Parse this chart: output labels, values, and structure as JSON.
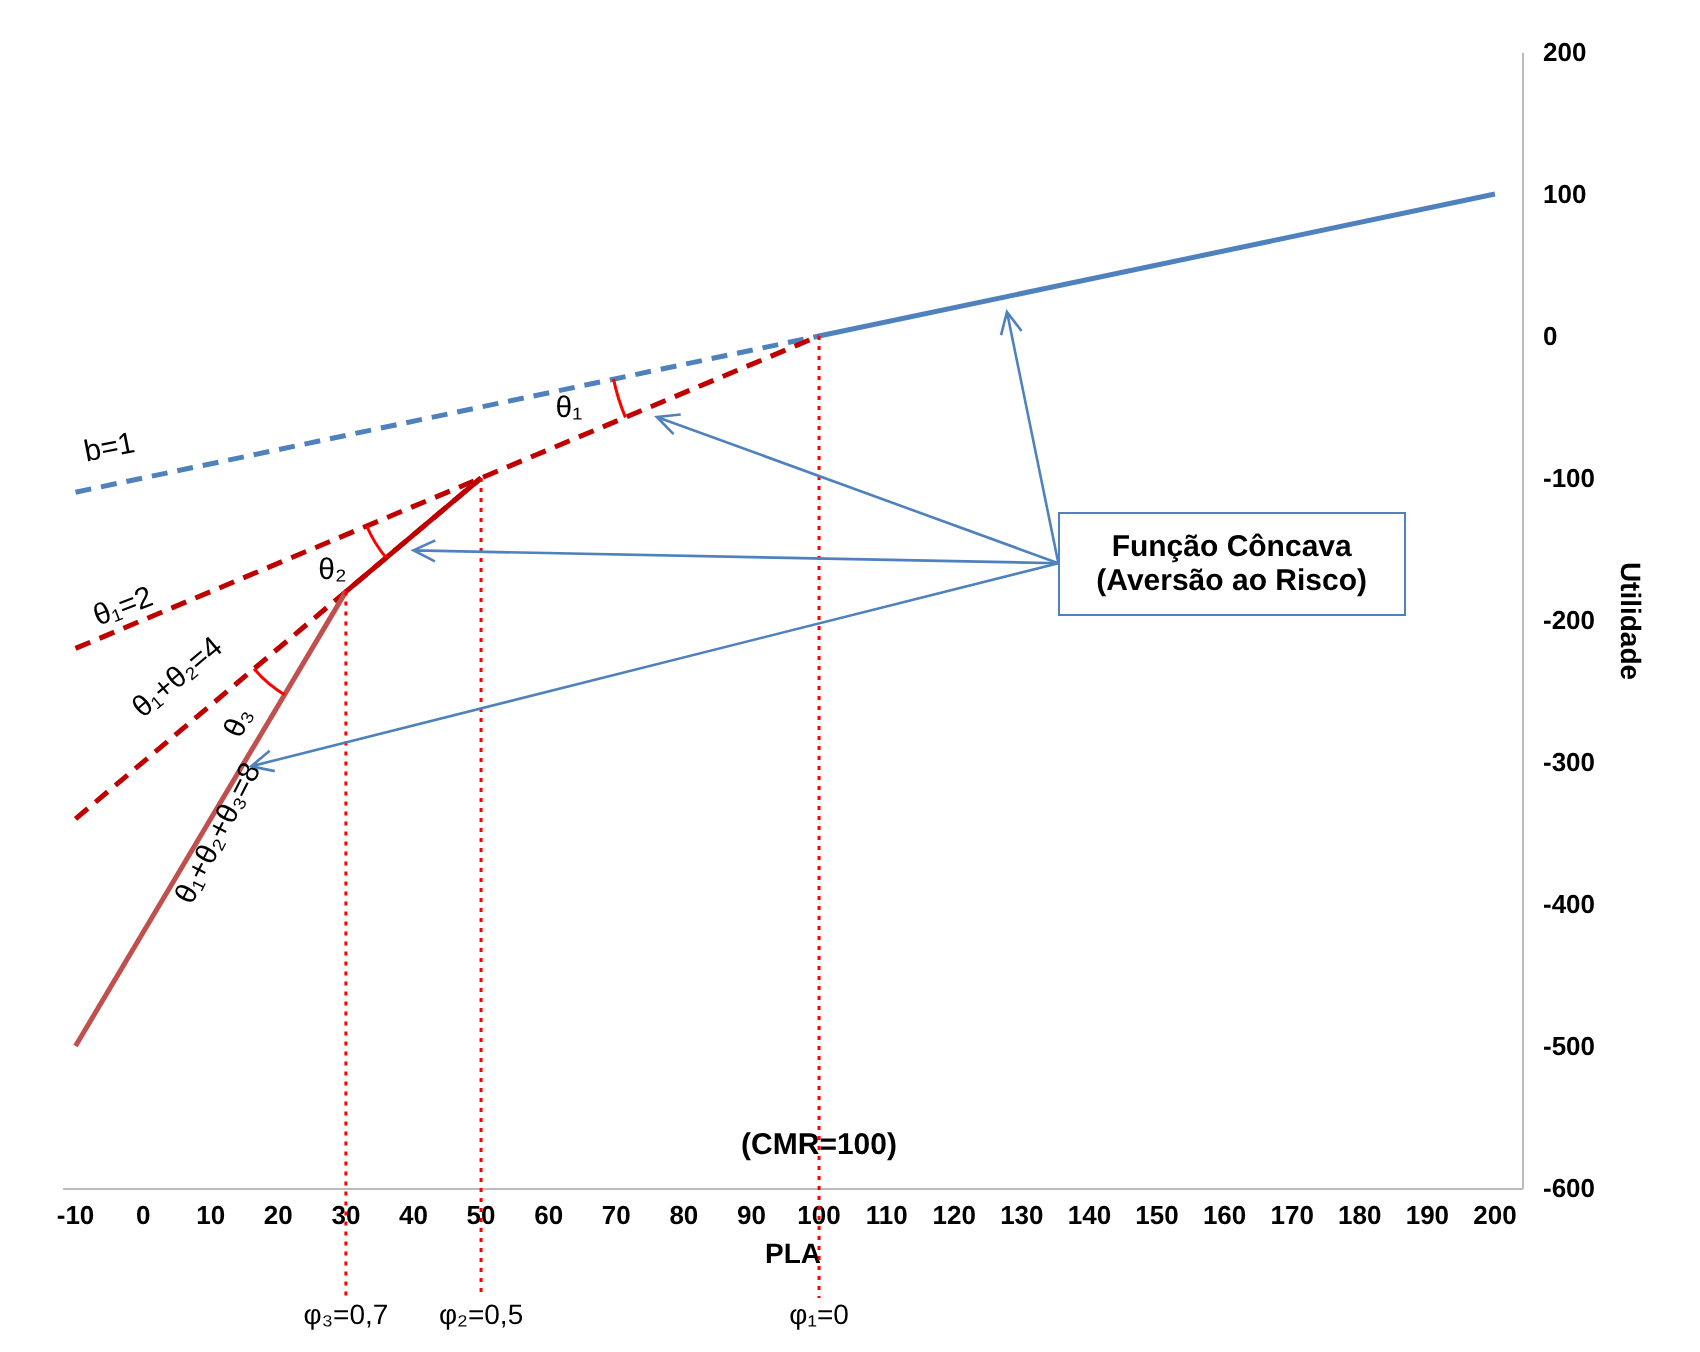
{
  "chart_data": {
    "type": "line",
    "xlabel": "PLA",
    "ylabel": "Utilidade",
    "xlim": [
      -12,
      204
    ],
    "ylim": [
      -600,
      200
    ],
    "xticks": [
      -10,
      0,
      10,
      20,
      30,
      40,
      50,
      60,
      70,
      80,
      90,
      100,
      110,
      120,
      130,
      140,
      150,
      160,
      170,
      180,
      190,
      200
    ],
    "yticks": [
      -600,
      -500,
      -400,
      -300,
      -200,
      -100,
      0,
      100,
      200
    ],
    "grid": false,
    "marker": "none",
    "series": [
      {
        "color": "#4f81bd",
        "line_style": "solid",
        "x": [
          100,
          200
        ],
        "values": [
          0,
          100
        ]
      },
      {
        "color": "#4f81bd",
        "line_style": "dashed",
        "x": [
          -10,
          100
        ],
        "values": [
          -110,
          0
        ]
      },
      {
        "color": "#c00000",
        "line_style": "dashed",
        "x": [
          -10,
          100
        ],
        "values": [
          -220,
          0
        ]
      },
      {
        "color": "#c00000",
        "line_style": "dashed",
        "x": [
          -10,
          50
        ],
        "values": [
          -340,
          -100
        ]
      },
      {
        "color": "#c00000",
        "line_style": "solid",
        "x": [
          30,
          50
        ],
        "values": [
          -180,
          -100
        ]
      },
      {
        "color": "#c0504d",
        "line_style": "solid",
        "x": [
          -10,
          30
        ],
        "values": [
          -500,
          -180
        ]
      }
    ],
    "ref_lines": [
      {
        "axis": "x",
        "value": 30,
        "color": "#ff0000",
        "line_style": "dotted"
      },
      {
        "axis": "x",
        "value": 50,
        "color": "#ff0000",
        "line_style": "dotted"
      },
      {
        "axis": "x",
        "value": 100,
        "color": "#ff0000",
        "line_style": "dotted"
      }
    ],
    "annotations": [
      "b=1",
      "θ₁=2",
      "θ₁+θ₂=4",
      "θ₁+θ₂+θ₃=8",
      "θ₁",
      "θ₂",
      "θ₃",
      {
        "text": "(CMR=100)",
        "x": 100,
        "y": -569
      },
      "φ₃=0,7",
      "φ₂=0,5",
      "φ₁=0",
      "Função Côncava\n(Aversão ao Risco)"
    ]
  }
}
